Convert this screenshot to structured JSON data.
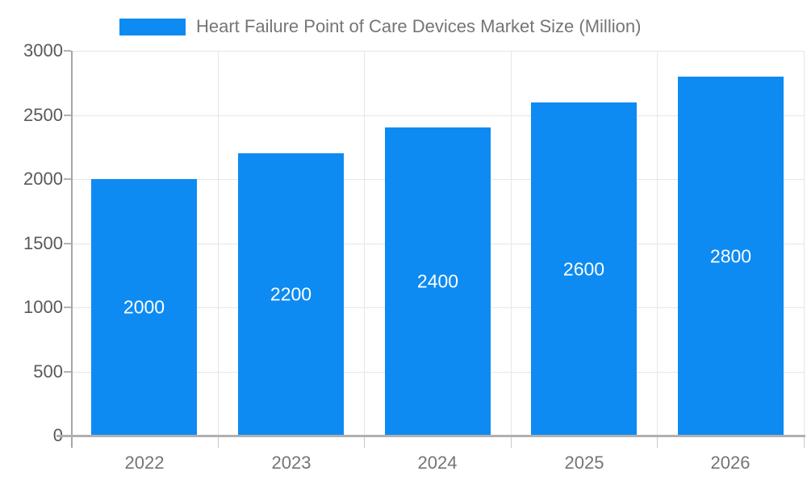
{
  "legend": {
    "label": "Heart Failure Point of Care Devices Market Size (Million)"
  },
  "colors": {
    "bar": "#0d8bf2",
    "grid": "#e6e6e6",
    "axis": "#b0b0b0",
    "legend_text": "#757575",
    "ytick_text": "#595959",
    "xtick_text": "#757575",
    "value_text": "#ffffff",
    "background": "#ffffff"
  },
  "chart_data": {
    "type": "bar",
    "title": "Heart Failure Point of Care Devices Market Size (Million)",
    "categories": [
      "2022",
      "2023",
      "2024",
      "2025",
      "2026"
    ],
    "values": [
      2000,
      2200,
      2400,
      2600,
      2800
    ],
    "bar_labels": [
      "2000",
      "2200",
      "2400",
      "2600",
      "2800"
    ],
    "xlabel": "",
    "ylabel": "",
    "ylim": [
      0,
      3000
    ],
    "yticks": [
      0,
      500,
      1000,
      1500,
      2000,
      2500,
      3000
    ],
    "grid": true,
    "legend_position": "top",
    "bar_color": "#0d8bf2",
    "value_label_position": "center-of-bar"
  }
}
